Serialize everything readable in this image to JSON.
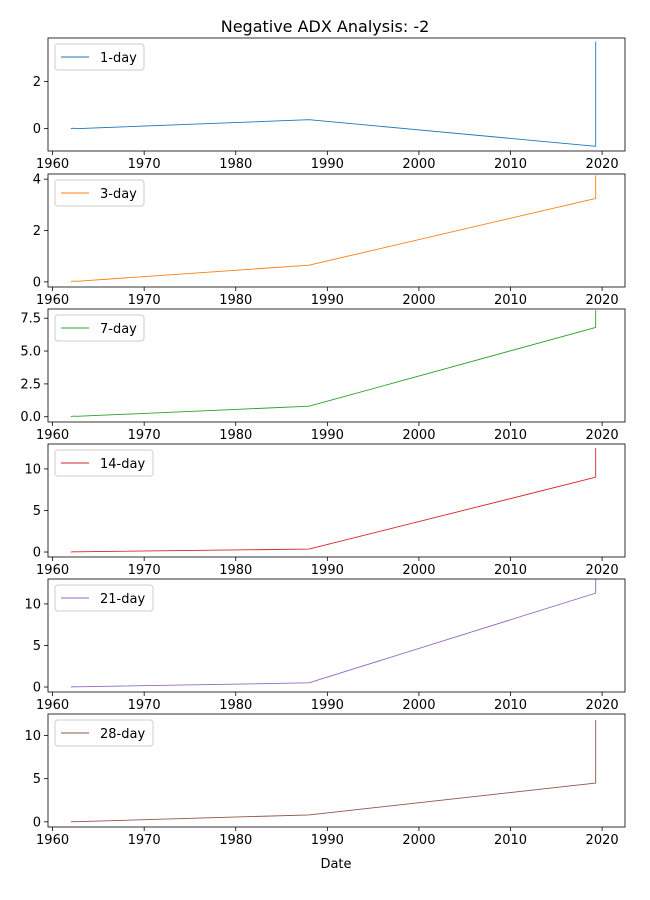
{
  "chart_data": {
    "type": "line",
    "title": "Negative ADX Analysis: -2",
    "xlabel": "Date",
    "x_ticks": [
      1960,
      1970,
      1980,
      1990,
      2000,
      2010,
      2020
    ],
    "xlim": [
      1959.5,
      2022.5
    ],
    "panels": [
      {
        "name": "1-day",
        "color": "#1f77b4",
        "legend": "upper-left",
        "ylim": [
          -0.95,
          3.85
        ],
        "y_ticks": [
          0,
          2
        ],
        "y_tick_labels": [
          "0",
          "2"
        ],
        "x": [
          1962.0,
          1962.3,
          1962.6,
          1988.0,
          2019.3,
          2019.3
        ],
        "y": [
          0.0,
          0.02,
          0.0,
          0.38,
          -0.75,
          3.7
        ]
      },
      {
        "name": "3-day",
        "color": "#ff7f0e",
        "legend": "upper-left",
        "ylim": [
          -0.2,
          4.2
        ],
        "y_ticks": [
          0,
          2,
          4
        ],
        "y_tick_labels": [
          "0",
          "2",
          "4"
        ],
        "x": [
          1962.0,
          1962.3,
          1962.6,
          1988.0,
          2019.3,
          2019.3
        ],
        "y": [
          0.0,
          0.03,
          0.02,
          0.65,
          3.25,
          4.15
        ]
      },
      {
        "name": "7-day",
        "color": "#2ca02c",
        "legend": "upper-left",
        "ylim": [
          -0.4,
          8.2
        ],
        "y_ticks": [
          0,
          2.5,
          5,
          7.5
        ],
        "y_tick_labels": [
          "0.0",
          "2.5",
          "5.0",
          "7.5"
        ],
        "x": [
          1962.0,
          1962.3,
          1962.6,
          1988.0,
          2019.3,
          2019.3
        ],
        "y": [
          0.0,
          0.05,
          0.03,
          0.8,
          6.8,
          8.1
        ]
      },
      {
        "name": "14-day",
        "color": "#d62728",
        "legend": "upper-left",
        "ylim": [
          -0.6,
          13.0
        ],
        "y_ticks": [
          0,
          5,
          10
        ],
        "y_tick_labels": [
          "0",
          "5",
          "10"
        ],
        "x": [
          1962.0,
          1962.3,
          1962.6,
          1988.0,
          2019.3,
          2019.3
        ],
        "y": [
          0.0,
          0.04,
          0.03,
          0.35,
          9.0,
          12.5
        ]
      },
      {
        "name": "21-day",
        "color": "#9467bd",
        "legend": "upper-left",
        "ylim": [
          -0.6,
          13.0
        ],
        "y_ticks": [
          0,
          5,
          10
        ],
        "y_tick_labels": [
          "0",
          "5",
          "10"
        ],
        "x": [
          1962.0,
          1962.3,
          1962.6,
          1988.0,
          2019.3,
          2019.3
        ],
        "y": [
          0.0,
          0.04,
          0.02,
          0.5,
          11.3,
          13.0
        ]
      },
      {
        "name": "28-day",
        "color": "#8c564b",
        "legend": "upper-left",
        "ylim": [
          -0.6,
          12.5
        ],
        "y_ticks": [
          0,
          5,
          10
        ],
        "y_tick_labels": [
          "0",
          "5",
          "10"
        ],
        "x": [
          1962.0,
          1962.3,
          1962.6,
          1988.0,
          2019.3,
          2019.3
        ],
        "y": [
          0.0,
          0.03,
          0.02,
          0.8,
          4.5,
          11.8
        ]
      }
    ]
  }
}
